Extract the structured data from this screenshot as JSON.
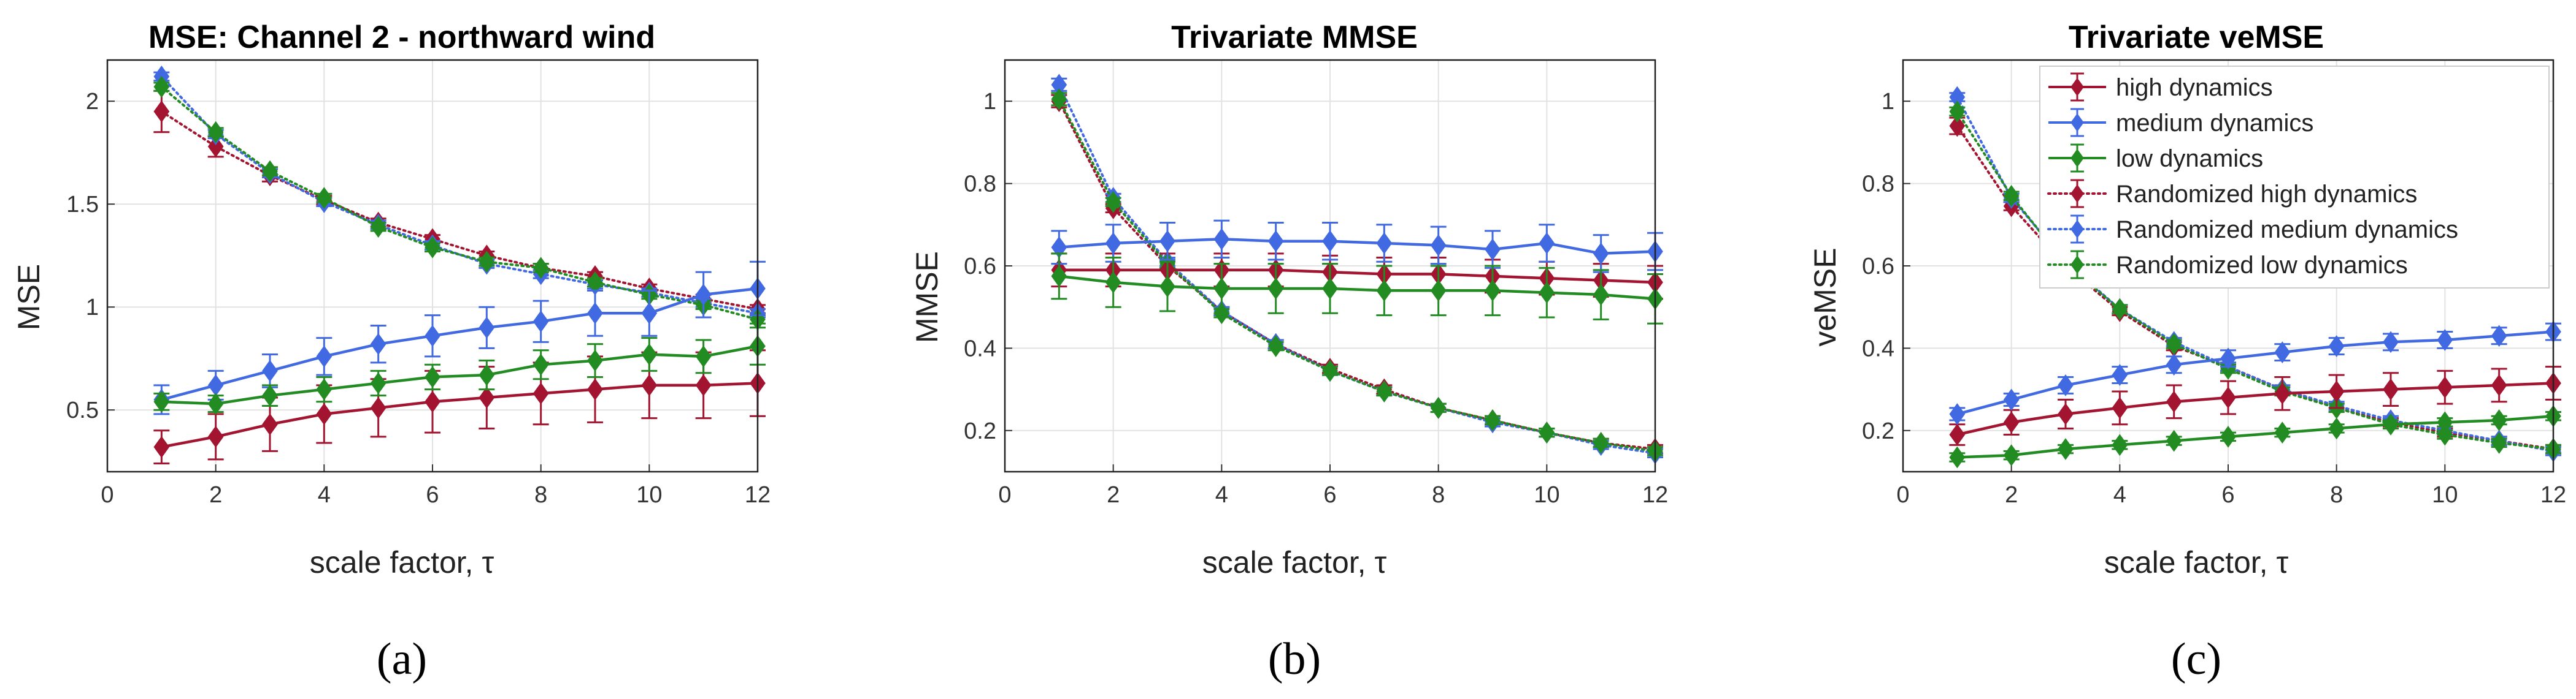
{
  "colors": {
    "high": "#a2142f",
    "medium": "#4169e1",
    "low": "#228b22"
  },
  "chart_data": [
    {
      "type": "line",
      "title": "MSE: Channel 2 - northward wind",
      "xlabel": "scale factor, τ",
      "ylabel": "MSE",
      "caption": "(a)",
      "xlim": [
        0,
        12
      ],
      "ylim": [
        0.2,
        2.2
      ],
      "xticks": [
        "0",
        "2",
        "4",
        "6",
        "8",
        "10",
        "12"
      ],
      "yticks": [
        "0.5",
        "1",
        "1.5",
        "2"
      ],
      "ytick_values": [
        0.5,
        1,
        1.5,
        2
      ],
      "grid": true,
      "x": [
        1,
        2,
        3,
        4,
        5,
        6,
        7,
        8,
        9,
        10,
        11,
        12
      ],
      "series": [
        {
          "name": "high dynamics",
          "color": "high",
          "style": "solid",
          "values": [
            0.32,
            0.37,
            0.43,
            0.48,
            0.51,
            0.54,
            0.56,
            0.58,
            0.6,
            0.62,
            0.62,
            0.63
          ],
          "errors": [
            0.08,
            0.11,
            0.13,
            0.14,
            0.14,
            0.15,
            0.15,
            0.15,
            0.16,
            0.16,
            0.16,
            0.16
          ]
        },
        {
          "name": "medium dynamics",
          "color": "medium",
          "style": "solid",
          "values": [
            0.55,
            0.62,
            0.69,
            0.76,
            0.82,
            0.86,
            0.9,
            0.93,
            0.97,
            0.97,
            1.06,
            1.09
          ],
          "errors": [
            0.07,
            0.07,
            0.08,
            0.09,
            0.09,
            0.1,
            0.1,
            0.1,
            0.11,
            0.11,
            0.11,
            0.13
          ]
        },
        {
          "name": "low dynamics",
          "color": "low",
          "style": "solid",
          "values": [
            0.54,
            0.53,
            0.57,
            0.6,
            0.63,
            0.66,
            0.67,
            0.72,
            0.74,
            0.77,
            0.76,
            0.81
          ],
          "errors": [
            0.04,
            0.04,
            0.05,
            0.06,
            0.06,
            0.06,
            0.07,
            0.07,
            0.08,
            0.08,
            0.08,
            0.09
          ]
        },
        {
          "name": "Randomized high dynamics",
          "color": "high",
          "style": "dotted",
          "values": [
            1.95,
            1.78,
            1.64,
            1.52,
            1.41,
            1.33,
            1.25,
            1.19,
            1.15,
            1.09,
            1.04,
            0.99
          ],
          "errors": [
            0.1,
            0.05,
            0.03,
            0.02,
            0.02,
            0.02,
            0.02,
            0.02,
            0.02,
            0.02,
            0.02,
            0.02
          ]
        },
        {
          "name": "Randomized medium dynamics",
          "color": "medium",
          "style": "dotted",
          "values": [
            2.12,
            1.84,
            1.65,
            1.51,
            1.4,
            1.3,
            1.21,
            1.16,
            1.11,
            1.07,
            1.02,
            0.97
          ],
          "errors": [
            0.02,
            0.02,
            0.02,
            0.02,
            0.02,
            0.02,
            0.02,
            0.02,
            0.02,
            0.02,
            0.02,
            0.02
          ]
        },
        {
          "name": "Randomized low dynamics",
          "color": "low",
          "style": "dotted",
          "values": [
            2.07,
            1.85,
            1.66,
            1.53,
            1.39,
            1.29,
            1.22,
            1.19,
            1.12,
            1.06,
            1.01,
            0.94
          ],
          "errors": [
            0.02,
            0.02,
            0.02,
            0.02,
            0.02,
            0.02,
            0.02,
            0.02,
            0.02,
            0.02,
            0.02,
            0.02
          ]
        }
      ]
    },
    {
      "type": "line",
      "title": "Trivariate MMSE",
      "xlabel": "scale factor, τ",
      "ylabel": "MMSE",
      "caption": "(b)",
      "xlim": [
        0,
        12
      ],
      "ylim": [
        0.1,
        1.1
      ],
      "xticks": [
        "0",
        "2",
        "4",
        "6",
        "8",
        "10",
        "12"
      ],
      "yticks": [
        "0.2",
        "0.4",
        "0.6",
        "0.8",
        "1"
      ],
      "ytick_values": [
        0.2,
        0.4,
        0.6,
        0.8,
        1
      ],
      "grid": true,
      "x": [
        1,
        2,
        3,
        4,
        5,
        6,
        7,
        8,
        9,
        10,
        11,
        12
      ],
      "series": [
        {
          "name": "high dynamics",
          "color": "high",
          "style": "solid",
          "values": [
            0.59,
            0.59,
            0.59,
            0.59,
            0.59,
            0.585,
            0.58,
            0.58,
            0.575,
            0.57,
            0.565,
            0.56
          ],
          "errors": [
            0.04,
            0.04,
            0.04,
            0.04,
            0.04,
            0.04,
            0.04,
            0.04,
            0.04,
            0.04,
            0.04,
            0.04
          ]
        },
        {
          "name": "medium dynamics",
          "color": "medium",
          "style": "solid",
          "values": [
            0.645,
            0.655,
            0.66,
            0.665,
            0.66,
            0.66,
            0.655,
            0.65,
            0.64,
            0.655,
            0.63,
            0.635
          ],
          "errors": [
            0.04,
            0.045,
            0.045,
            0.045,
            0.045,
            0.045,
            0.045,
            0.045,
            0.045,
            0.045,
            0.045,
            0.045
          ]
        },
        {
          "name": "low dynamics",
          "color": "low",
          "style": "solid",
          "values": [
            0.575,
            0.56,
            0.55,
            0.545,
            0.545,
            0.545,
            0.54,
            0.54,
            0.54,
            0.535,
            0.53,
            0.52
          ],
          "errors": [
            0.055,
            0.06,
            0.06,
            0.06,
            0.06,
            0.06,
            0.06,
            0.06,
            0.06,
            0.06,
            0.06,
            0.06
          ]
        },
        {
          "name": "Randomized high dynamics",
          "color": "high",
          "style": "dotted",
          "values": [
            1.0,
            0.74,
            0.6,
            0.49,
            0.41,
            0.35,
            0.3,
            0.255,
            0.225,
            0.195,
            0.17,
            0.155
          ],
          "errors": [
            0.015,
            0.01,
            0.01,
            0.01,
            0.01,
            0.01,
            0.01,
            0.01,
            0.01,
            0.01,
            0.01,
            0.01
          ]
        },
        {
          "name": "Randomized medium dynamics",
          "color": "medium",
          "style": "dotted",
          "values": [
            1.04,
            0.765,
            0.61,
            0.49,
            0.41,
            0.345,
            0.295,
            0.255,
            0.22,
            0.195,
            0.165,
            0.145
          ],
          "errors": [
            0.015,
            0.01,
            0.01,
            0.01,
            0.01,
            0.01,
            0.01,
            0.01,
            0.01,
            0.01,
            0.01,
            0.01
          ]
        },
        {
          "name": "Randomized low dynamics",
          "color": "low",
          "style": "dotted",
          "values": [
            1.005,
            0.755,
            0.605,
            0.485,
            0.405,
            0.345,
            0.295,
            0.255,
            0.225,
            0.195,
            0.17,
            0.15
          ],
          "errors": [
            0.015,
            0.01,
            0.01,
            0.01,
            0.01,
            0.01,
            0.01,
            0.01,
            0.01,
            0.01,
            0.01,
            0.01
          ]
        }
      ]
    },
    {
      "type": "line",
      "title": "Trivariate veMSE",
      "xlabel": "scale factor, τ",
      "ylabel": "veMSE",
      "caption": "(c)",
      "xlim": [
        0,
        12
      ],
      "ylim": [
        0.1,
        1.1
      ],
      "xticks": [
        "0",
        "2",
        "4",
        "6",
        "8",
        "10",
        "12"
      ],
      "yticks": [
        "0.2",
        "0.4",
        "0.6",
        "0.8",
        "1"
      ],
      "ytick_values": [
        0.2,
        0.4,
        0.6,
        0.8,
        1
      ],
      "grid": true,
      "legend": "top-right",
      "x": [
        1,
        2,
        3,
        4,
        5,
        6,
        7,
        8,
        9,
        10,
        11,
        12
      ],
      "series": [
        {
          "name": "high dynamics",
          "color": "high",
          "style": "solid",
          "values": [
            0.19,
            0.22,
            0.24,
            0.255,
            0.27,
            0.28,
            0.29,
            0.295,
            0.3,
            0.305,
            0.31,
            0.315
          ],
          "errors": [
            0.025,
            0.03,
            0.035,
            0.04,
            0.04,
            0.04,
            0.04,
            0.04,
            0.04,
            0.04,
            0.04,
            0.04
          ]
        },
        {
          "name": "medium dynamics",
          "color": "medium",
          "style": "solid",
          "values": [
            0.24,
            0.275,
            0.31,
            0.335,
            0.36,
            0.375,
            0.39,
            0.405,
            0.415,
            0.42,
            0.43,
            0.44
          ],
          "errors": [
            0.015,
            0.015,
            0.02,
            0.02,
            0.02,
            0.02,
            0.02,
            0.02,
            0.02,
            0.02,
            0.02,
            0.02
          ]
        },
        {
          "name": "low dynamics",
          "color": "low",
          "style": "solid",
          "values": [
            0.135,
            0.14,
            0.155,
            0.165,
            0.175,
            0.185,
            0.195,
            0.205,
            0.215,
            0.22,
            0.225,
            0.235
          ],
          "errors": [
            0.01,
            0.01,
            0.01,
            0.01,
            0.01,
            0.01,
            0.01,
            0.01,
            0.01,
            0.01,
            0.01,
            0.01
          ]
        },
        {
          "name": "Randomized high dynamics",
          "color": "high",
          "style": "dotted",
          "values": [
            0.94,
            0.745,
            0.6,
            0.49,
            0.405,
            0.355,
            0.3,
            0.255,
            0.22,
            0.195,
            0.175,
            0.155
          ],
          "errors": [
            0.02,
            0.01,
            0.01,
            0.01,
            0.01,
            0.01,
            0.01,
            0.01,
            0.01,
            0.01,
            0.01,
            0.01
          ]
        },
        {
          "name": "Randomized medium dynamics",
          "color": "medium",
          "style": "dotted",
          "values": [
            1.01,
            0.765,
            0.61,
            0.495,
            0.415,
            0.355,
            0.3,
            0.26,
            0.225,
            0.2,
            0.175,
            0.15
          ],
          "errors": [
            0.01,
            0.01,
            0.01,
            0.01,
            0.01,
            0.01,
            0.01,
            0.01,
            0.01,
            0.01,
            0.01,
            0.01
          ]
        },
        {
          "name": "Randomized low dynamics",
          "color": "low",
          "style": "dotted",
          "values": [
            0.975,
            0.77,
            0.605,
            0.495,
            0.41,
            0.35,
            0.295,
            0.255,
            0.215,
            0.19,
            0.17,
            0.155
          ],
          "errors": [
            0.01,
            0.01,
            0.01,
            0.01,
            0.01,
            0.01,
            0.01,
            0.01,
            0.01,
            0.01,
            0.01,
            0.01
          ]
        }
      ]
    }
  ]
}
